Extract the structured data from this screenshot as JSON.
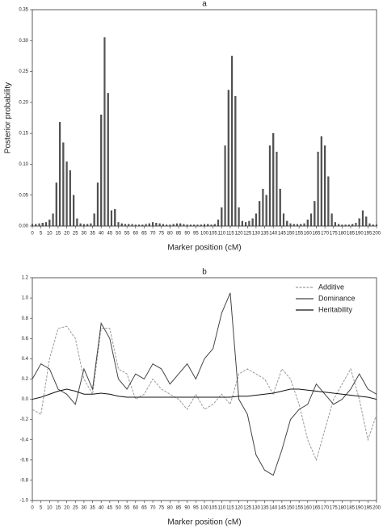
{
  "chart_data": [
    {
      "type": "bar",
      "title": "a",
      "x_label": "Marker position (cM)",
      "y_label": "Posterior probability",
      "color": "#555555",
      "x": [
        0,
        2,
        4,
        6,
        8,
        10,
        12,
        14,
        16,
        18,
        20,
        22,
        24,
        26,
        28,
        30,
        32,
        34,
        36,
        38,
        40,
        42,
        44,
        46,
        48,
        50,
        52,
        54,
        56,
        58,
        60,
        62,
        64,
        66,
        68,
        70,
        72,
        74,
        76,
        78,
        80,
        82,
        84,
        86,
        88,
        90,
        92,
        94,
        96,
        98,
        100,
        102,
        104,
        106,
        108,
        110,
        112,
        114,
        116,
        118,
        120,
        122,
        124,
        126,
        128,
        130,
        132,
        134,
        136,
        138,
        140,
        142,
        144,
        146,
        148,
        150,
        152,
        154,
        156,
        158,
        160,
        162,
        164,
        166,
        168,
        170,
        172,
        174,
        176,
        178,
        180,
        182,
        184,
        186,
        188,
        190,
        192,
        194,
        196,
        198,
        200
      ],
      "values": [
        0.003,
        0.003,
        0.004,
        0.005,
        0.006,
        0.01,
        0.02,
        0.07,
        0.168,
        0.135,
        0.104,
        0.09,
        0.05,
        0.012,
        0.004,
        0.003,
        0.003,
        0.004,
        0.02,
        0.07,
        0.18,
        0.305,
        0.215,
        0.025,
        0.027,
        0.006,
        0.004,
        0.003,
        0.003,
        0.003,
        0.002,
        0.002,
        0.002,
        0.003,
        0.004,
        0.006,
        0.005,
        0.004,
        0.003,
        0.002,
        0.002,
        0.003,
        0.004,
        0.004,
        0.003,
        0.002,
        0.002,
        0.002,
        0.002,
        0.002,
        0.003,
        0.003,
        0.002,
        0.003,
        0.01,
        0.03,
        0.13,
        0.22,
        0.275,
        0.21,
        0.03,
        0.008,
        0.006,
        0.008,
        0.012,
        0.02,
        0.04,
        0.06,
        0.05,
        0.13,
        0.15,
        0.12,
        0.06,
        0.02,
        0.008,
        0.004,
        0.003,
        0.003,
        0.003,
        0.004,
        0.01,
        0.02,
        0.04,
        0.12,
        0.145,
        0.13,
        0.08,
        0.02,
        0.006,
        0.003,
        0.002,
        0.002,
        0.002,
        0.003,
        0.005,
        0.012,
        0.025,
        0.015,
        0.004,
        0.002,
        0.002
      ],
      "xlim": [
        0,
        200
      ],
      "xticks": [
        0,
        5,
        10,
        15,
        20,
        25,
        30,
        35,
        40,
        45,
        50,
        55,
        60,
        65,
        70,
        75,
        80,
        85,
        90,
        95,
        100,
        105,
        110,
        115,
        120,
        125,
        130,
        135,
        140,
        145,
        150,
        155,
        160,
        165,
        170,
        175,
        180,
        185,
        190,
        195,
        200
      ],
      "ylim": [
        0,
        0.35
      ],
      "yticks": [
        {
          "value": 0,
          "label": "0.00"
        },
        0.05,
        {
          "value": 0.1,
          "label": "0.10"
        },
        0.15,
        {
          "value": 0.2,
          "label": "0.20"
        },
        0.25,
        {
          "value": 0.3,
          "label": "0.30"
        },
        0.35
      ]
    },
    {
      "type": "line",
      "title": "b",
      "x_label": "Marker position (cM)",
      "legend": "upper right",
      "x": [
        0,
        5,
        10,
        15,
        20,
        25,
        30,
        35,
        40,
        45,
        50,
        55,
        60,
        65,
        70,
        75,
        80,
        85,
        90,
        95,
        100,
        105,
        110,
        115,
        120,
        125,
        130,
        135,
        140,
        145,
        150,
        155,
        160,
        165,
        170,
        175,
        180,
        185,
        190,
        195,
        200
      ],
      "series": [
        {
          "name": "Additive",
          "color": "#9a9a9a",
          "values": [
            -0.1,
            -0.15,
            0.4,
            0.7,
            0.72,
            0.6,
            0.2,
            0.05,
            0.7,
            0.7,
            0.3,
            0.25,
            0.0,
            0.05,
            0.2,
            0.1,
            0.05,
            0.0,
            -0.1,
            0.05,
            -0.1,
            -0.05,
            0.05,
            -0.05,
            0.25,
            0.3,
            0.25,
            0.2,
            0.05,
            0.3,
            0.2,
            -0.05,
            -0.4,
            -0.6,
            -0.3,
            0.0,
            0.15,
            0.3,
            0.0,
            -0.4,
            -0.15
          ]
        },
        {
          "name": "Dominance",
          "color": "#444444",
          "values": [
            0.2,
            0.35,
            0.3,
            0.1,
            0.05,
            -0.05,
            0.3,
            0.1,
            0.75,
            0.6,
            0.2,
            0.1,
            0.25,
            0.2,
            0.35,
            0.3,
            0.15,
            0.25,
            0.35,
            0.2,
            0.4,
            0.5,
            0.85,
            1.05,
            0.0,
            -0.15,
            -0.55,
            -0.7,
            -0.75,
            -0.5,
            -0.2,
            -0.1,
            -0.05,
            0.15,
            0.05,
            -0.05,
            0.0,
            0.1,
            0.25,
            0.1,
            0.05
          ]
        },
        {
          "name": "Heritability",
          "color": "#111111",
          "values": [
            0.0,
            0.02,
            0.05,
            0.08,
            0.1,
            0.08,
            0.05,
            0.05,
            0.06,
            0.05,
            0.03,
            0.02,
            0.02,
            0.02,
            0.02,
            0.02,
            0.02,
            0.02,
            0.02,
            0.02,
            0.02,
            0.02,
            0.02,
            0.02,
            0.03,
            0.03,
            0.04,
            0.05,
            0.06,
            0.08,
            0.1,
            0.1,
            0.09,
            0.08,
            0.07,
            0.06,
            0.05,
            0.04,
            0.03,
            0.02,
            0.0
          ]
        }
      ],
      "xlim": [
        0,
        200
      ],
      "xticks": [
        0,
        5,
        10,
        15,
        20,
        25,
        30,
        35,
        40,
        45,
        50,
        55,
        60,
        65,
        70,
        75,
        80,
        85,
        90,
        95,
        100,
        105,
        110,
        115,
        120,
        125,
        130,
        135,
        140,
        145,
        150,
        155,
        160,
        165,
        170,
        175,
        180,
        185,
        190,
        195,
        200
      ],
      "ylim": [
        -1.0,
        1.2
      ],
      "yticks": [
        {
          "value": -1,
          "label": "-1.0"
        },
        -0.8,
        -0.6,
        -0.4,
        -0.2,
        {
          "value": 0,
          "label": "0.0"
        },
        0.2,
        0.4,
        0.6,
        0.8,
        {
          "value": 1,
          "label": "1.0"
        },
        1.2
      ]
    }
  ]
}
